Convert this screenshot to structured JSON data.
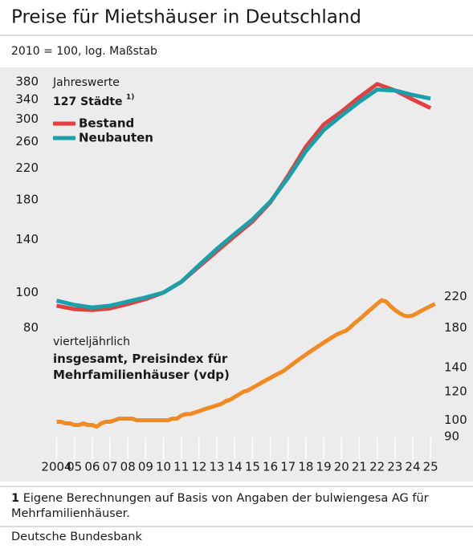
{
  "chart_data": {
    "type": "line",
    "title": "Preise für Mietshäuser in Deutschland",
    "subtitle": "2010 = 100, log. Maßstab",
    "log": true,
    "x": [
      2004,
      2005,
      2006,
      2007,
      2008,
      2009,
      2010,
      2011,
      2012,
      2013,
      2014,
      2015,
      2016,
      2017,
      2018,
      2019,
      2020,
      2021,
      2022,
      2023,
      2024,
      2025
    ],
    "xlim": [
      2003.3,
      2025.4
    ],
    "xticks": [
      {
        "value": 2004,
        "label": "2004"
      },
      {
        "value": 2005,
        "label": "05"
      },
      {
        "value": 2006,
        "label": "06"
      },
      {
        "value": 2007,
        "label": "07"
      },
      {
        "value": 2008,
        "label": "08"
      },
      {
        "value": 2009,
        "label": "09"
      },
      {
        "value": 2010,
        "label": "10"
      },
      {
        "value": 2011,
        "label": "11"
      },
      {
        "value": 2012,
        "label": "12"
      },
      {
        "value": 2013,
        "label": "13"
      },
      {
        "value": 2014,
        "label": "14"
      },
      {
        "value": 2015,
        "label": "15"
      },
      {
        "value": 2016,
        "label": "16"
      },
      {
        "value": 2017,
        "label": "17"
      },
      {
        "value": 2018,
        "label": "18"
      },
      {
        "value": 2019,
        "label": "19"
      },
      {
        "value": 2020,
        "label": "20"
      },
      {
        "value": 2021,
        "label": "21"
      },
      {
        "value": 2022,
        "label": "22"
      },
      {
        "value": 2023,
        "label": "23"
      },
      {
        "value": 2024,
        "label": "24"
      },
      {
        "value": 2025,
        "label": "25"
      }
    ],
    "ylim": [
      37,
      400
    ],
    "yticks": [
      80,
      100,
      140,
      180,
      220,
      260,
      300,
      340,
      380
    ],
    "y2lim": [
      83,
      910
    ],
    "y2ticks": [
      90,
      100,
      120,
      140,
      180,
      220
    ],
    "legend_heading": "Jahreswerte",
    "legend_subheading": "127 Städte",
    "legend_note": "1)",
    "quarterly_heading": "vierteljährlich",
    "series": [
      {
        "name": "Bestand",
        "color": "#e2403f",
        "values": [
          92,
          90,
          89.5,
          90.5,
          93,
          96,
          100,
          107,
          118,
          130,
          143,
          157,
          177,
          210,
          252,
          290,
          315,
          345,
          375,
          360,
          340,
          322
        ]
      },
      {
        "name": "Neubauten",
        "color": "#1aa0aa",
        "values": [
          95,
          92.5,
          91,
          92,
          94.5,
          97,
          100,
          107,
          119,
          132,
          145,
          159,
          178,
          207,
          245,
          280,
          307,
          335,
          362,
          360,
          350,
          342
        ]
      },
      {
        "name": "insgesamt, Preisindex für Mehrfamilienhäuser (vdp)",
        "color": "#f28a22",
        "axis": "y2",
        "x": [
          2004,
          2004.25,
          2004.5,
          2004.75,
          2005,
          2005.25,
          2005.5,
          2005.75,
          2006,
          2006.25,
          2006.5,
          2006.75,
          2007,
          2007.25,
          2007.5,
          2007.75,
          2008,
          2008.25,
          2008.5,
          2008.75,
          2009,
          2009.25,
          2009.5,
          2009.75,
          2010,
          2010.25,
          2010.5,
          2010.75,
          2011,
          2011.25,
          2011.5,
          2011.75,
          2012,
          2012.25,
          2012.5,
          2012.75,
          2013,
          2013.25,
          2013.5,
          2013.75,
          2014,
          2014.25,
          2014.5,
          2014.75,
          2015,
          2015.25,
          2015.5,
          2015.75,
          2016,
          2016.25,
          2016.5,
          2016.75,
          2017,
          2017.25,
          2017.5,
          2017.75,
          2018,
          2018.25,
          2018.5,
          2018.75,
          2019,
          2019.25,
          2019.5,
          2019.75,
          2020,
          2020.25,
          2020.5,
          2020.75,
          2021,
          2021.25,
          2021.5,
          2021.75,
          2022,
          2022.25,
          2022.5,
          2022.75,
          2023,
          2023.25,
          2023.5,
          2023.75,
          2024,
          2024.25,
          2024.5,
          2024.75,
          2025,
          2025.25
        ],
        "values": [
          99,
          99,
          98,
          98,
          97,
          97,
          98,
          97,
          97,
          96,
          98,
          99,
          99,
          100,
          101,
          101,
          101,
          101,
          100,
          100,
          100,
          100,
          100,
          100,
          100,
          100,
          101,
          101,
          103,
          104,
          104,
          105,
          106,
          107,
          108,
          109,
          110,
          111,
          113,
          114,
          116,
          118,
          120,
          121,
          123,
          125,
          127,
          129,
          131,
          133,
          135,
          137,
          140,
          143,
          146,
          149,
          152,
          155,
          158,
          161,
          164,
          167,
          170,
          173,
          175,
          177,
          181,
          186,
          190,
          195,
          200,
          205,
          210,
          215,
          213,
          207,
          202,
          198,
          195,
          194,
          195,
          198,
          201,
          204,
          207,
          210
        ]
      }
    ],
    "footnote_number": "1",
    "footnote": "Eigene Berechnungen auf Basis von Angaben der bulwiengesa AG für Mehrfamilienhäuser.",
    "source": "Deutsche Bundesbank"
  }
}
